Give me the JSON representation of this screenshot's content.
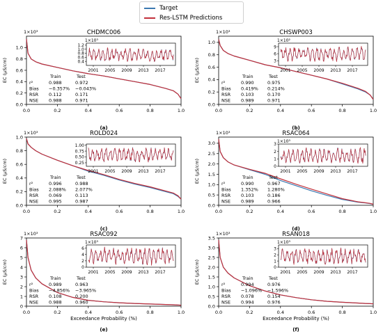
{
  "legend": {
    "items": [
      {
        "label": "Target",
        "color": "#3a78b0"
      },
      {
        "label": "Res-LSTM Predictions",
        "color": "#c2303a"
      }
    ]
  },
  "colors": {
    "target": "#3a78b0",
    "prediction": "#c2303a"
  },
  "shared": {
    "ylabel": "EC (μS/cm)",
    "xlabel": "Exceedance Probability (%)",
    "x_ticks": [
      "0.0",
      "0.2",
      "0.4",
      "0.6",
      "0.8",
      "1.0"
    ],
    "inset_x_ticks": [
      "2001",
      "2005",
      "2009",
      "2013",
      "2017"
    ],
    "stats_header": [
      "",
      "Train",
      "Test"
    ],
    "stat_names": [
      "r²",
      "Bias",
      "RSR",
      "NSE"
    ]
  },
  "chart_data": [
    {
      "type": "line",
      "title": "CHDMC006",
      "letter": "(a)",
      "multiplier": "1×10³",
      "x": [
        0,
        0.01,
        0.03,
        0.06,
        0.1,
        0.2,
        0.3,
        0.4,
        0.5,
        0.6,
        0.7,
        0.8,
        0.9,
        0.95,
        0.98,
        1.0
      ],
      "series": [
        {
          "name": "Target",
          "values": [
            1.15,
            0.9,
            0.8,
            0.75,
            0.71,
            0.65,
            0.59,
            0.54,
            0.5,
            0.45,
            0.4,
            0.35,
            0.28,
            0.24,
            0.18,
            0.1
          ]
        },
        {
          "name": "Res-LSTM Predictions",
          "values": [
            1.15,
            0.9,
            0.8,
            0.75,
            0.71,
            0.65,
            0.59,
            0.54,
            0.5,
            0.45,
            0.4,
            0.35,
            0.28,
            0.24,
            0.18,
            0.1
          ]
        }
      ],
      "ylim": [
        0,
        1.2
      ],
      "yticks": [
        "0.0",
        "0.2",
        "0.4",
        "0.6",
        "0.8",
        "1.0"
      ],
      "inset": {
        "ylim": [
          0.2,
          1.3
        ],
        "yticks": [
          "0.4",
          "0.6",
          "0.8",
          "1.0",
          "1.2"
        ],
        "multiplier": "1×10³",
        "range": [
          0.3,
          1.1
        ]
      },
      "stats": [
        [
          "0.988",
          "0.972"
        ],
        [
          "−0.357%",
          "−0.043%"
        ],
        [
          "0.112",
          "0.171"
        ],
        [
          "0.988",
          "0.971"
        ]
      ]
    },
    {
      "type": "line",
      "title": "CHSWP003",
      "letter": "(b)",
      "multiplier": "1×10³",
      "x": [
        0,
        0.01,
        0.03,
        0.06,
        0.1,
        0.2,
        0.3,
        0.4,
        0.5,
        0.6,
        0.7,
        0.8,
        0.9,
        0.95,
        0.98,
        1.0
      ],
      "series": [
        {
          "name": "Target",
          "values": [
            1.05,
            0.95,
            0.87,
            0.82,
            0.78,
            0.71,
            0.64,
            0.59,
            0.53,
            0.47,
            0.41,
            0.33,
            0.25,
            0.2,
            0.15,
            0.08
          ]
        },
        {
          "name": "Res-LSTM Predictions",
          "values": [
            1.05,
            0.95,
            0.87,
            0.82,
            0.78,
            0.71,
            0.64,
            0.59,
            0.53,
            0.47,
            0.41,
            0.34,
            0.26,
            0.21,
            0.15,
            0.08
          ]
        }
      ],
      "ylim": [
        0,
        1.1
      ],
      "yticks": [
        "0.0",
        "0.2",
        "0.4",
        "0.6",
        "0.8",
        "1.0"
      ],
      "inset": {
        "ylim": [
          1,
          10.5
        ],
        "yticks": [
          "3",
          "6",
          "9"
        ],
        "multiplier": "1×10²",
        "range": [
          2,
          9.5
        ]
      },
      "stats": [
        [
          "0.990",
          "0.975"
        ],
        [
          "0.419%",
          "0.214%"
        ],
        [
          "0.103",
          "0.170"
        ],
        [
          "0.989",
          "0.971"
        ]
      ]
    },
    {
      "type": "line",
      "title": "ROLD024",
      "letter": "(c)",
      "multiplier": "1×10³",
      "x": [
        0,
        0.01,
        0.03,
        0.06,
        0.1,
        0.2,
        0.3,
        0.4,
        0.5,
        0.6,
        0.7,
        0.8,
        0.9,
        0.95,
        0.98,
        1.0
      ],
      "series": [
        {
          "name": "Target",
          "values": [
            0.98,
            0.9,
            0.85,
            0.8,
            0.75,
            0.66,
            0.58,
            0.5,
            0.44,
            0.37,
            0.31,
            0.26,
            0.2,
            0.17,
            0.13,
            0.09
          ]
        },
        {
          "name": "Res-LSTM Predictions",
          "values": [
            0.98,
            0.9,
            0.85,
            0.8,
            0.75,
            0.66,
            0.58,
            0.51,
            0.45,
            0.38,
            0.32,
            0.27,
            0.21,
            0.18,
            0.14,
            0.09
          ]
        }
      ],
      "ylim": [
        0,
        1.0
      ],
      "yticks": [
        "0.0",
        "0.2",
        "0.4",
        "0.6",
        "0.8",
        "1.0"
      ],
      "inset": {
        "ylim": [
          0.1,
          1.05
        ],
        "yticks": [
          "0.25",
          "0.50",
          "0.75",
          "1.00"
        ],
        "multiplier": "",
        "range": [
          0.2,
          0.95
        ]
      },
      "stats": [
        [
          "0.996",
          "0.988"
        ],
        [
          "2.088%",
          "2.077%"
        ],
        [
          "0.069",
          "0.113"
        ],
        [
          "0.995",
          "0.987"
        ]
      ]
    },
    {
      "type": "line",
      "title": "RSAC064",
      "letter": "(d)",
      "multiplier": "1×10³",
      "x": [
        0,
        0.01,
        0.03,
        0.06,
        0.1,
        0.2,
        0.3,
        0.4,
        0.5,
        0.6,
        0.7,
        0.8,
        0.9,
        0.95,
        0.98,
        1.0
      ],
      "series": [
        {
          "name": "Target",
          "values": [
            3.2,
            2.6,
            2.3,
            2.1,
            1.95,
            1.72,
            1.5,
            1.2,
            0.95,
            0.7,
            0.48,
            0.28,
            0.15,
            0.11,
            0.08,
            0.05
          ]
        },
        {
          "name": "Res-LSTM Predictions",
          "values": [
            3.2,
            2.6,
            2.3,
            2.1,
            1.95,
            1.74,
            1.55,
            1.28,
            1.02,
            0.78,
            0.55,
            0.32,
            0.17,
            0.12,
            0.09,
            0.05
          ]
        }
      ],
      "ylim": [
        0,
        3.3
      ],
      "yticks": [
        "0.0",
        "0.5",
        "1.0",
        "1.5",
        "2.0",
        "2.5",
        "3.0"
      ],
      "inset": {
        "ylim": [
          0,
          3
        ],
        "yticks": [
          "0",
          "1",
          "2",
          "3"
        ],
        "multiplier": "1×10³",
        "range": [
          0.1,
          2.6
        ]
      },
      "stats": [
        [
          "0.990",
          "0.967"
        ],
        [
          "1.352%",
          "1.280%"
        ],
        [
          "0.103",
          "0.186"
        ],
        [
          "0.989",
          "0.966"
        ]
      ]
    },
    {
      "type": "line",
      "title": "RSAC092",
      "letter": "(e)",
      "multiplier": "1×10³",
      "x": [
        0,
        0.01,
        0.03,
        0.06,
        0.1,
        0.2,
        0.3,
        0.4,
        0.5,
        0.6,
        0.7,
        0.8,
        0.9,
        0.95,
        0.98,
        1.0
      ],
      "series": [
        {
          "name": "Target",
          "values": [
            6.8,
            5.0,
            3.7,
            2.9,
            2.3,
            1.4,
            0.9,
            0.6,
            0.45,
            0.35,
            0.28,
            0.22,
            0.17,
            0.14,
            0.12,
            0.1
          ]
        },
        {
          "name": "Res-LSTM Predictions",
          "values": [
            6.8,
            5.0,
            3.7,
            2.9,
            2.3,
            1.4,
            0.9,
            0.6,
            0.45,
            0.35,
            0.28,
            0.22,
            0.17,
            0.14,
            0.12,
            0.1
          ]
        }
      ],
      "ylim": [
        0,
        7
      ],
      "yticks": [
        "0",
        "1",
        "2",
        "3",
        "4",
        "5",
        "6",
        "7"
      ],
      "inset": {
        "ylim": [
          0,
          7
        ],
        "yticks": [
          "0",
          "2",
          "4",
          "6"
        ],
        "multiplier": "1×10³",
        "range": [
          0.2,
          6.5
        ]
      },
      "stats": [
        [
          "0.989",
          "0.963"
        ],
        [
          "−4.856%",
          "−3.965%"
        ],
        [
          "0.108",
          "0.200"
        ],
        [
          "0.988",
          "0.960"
        ]
      ]
    },
    {
      "type": "line",
      "title": "RSAN018",
      "letter": "(f)",
      "multiplier": "1×10³",
      "x": [
        0,
        0.01,
        0.03,
        0.06,
        0.1,
        0.2,
        0.3,
        0.4,
        0.5,
        0.6,
        0.7,
        0.8,
        0.9,
        0.95,
        0.98,
        1.0
      ],
      "series": [
        {
          "name": "Target",
          "values": [
            3.4,
            2.5,
            2.0,
            1.7,
            1.45,
            1.05,
            0.78,
            0.58,
            0.44,
            0.33,
            0.25,
            0.2,
            0.16,
            0.14,
            0.13,
            0.12
          ]
        },
        {
          "name": "Res-LSTM Predictions",
          "values": [
            3.4,
            2.5,
            2.0,
            1.7,
            1.45,
            1.05,
            0.78,
            0.58,
            0.44,
            0.33,
            0.25,
            0.2,
            0.16,
            0.14,
            0.13,
            0.12
          ]
        }
      ],
      "ylim": [
        0,
        3.5
      ],
      "yticks": [
        "0.0",
        "0.5",
        "1.0",
        "1.5",
        "2.0",
        "2.5",
        "3.0",
        "3.5"
      ],
      "inset": {
        "ylim": [
          0,
          3.6
        ],
        "yticks": [
          "0",
          "1",
          "2",
          "3"
        ],
        "multiplier": "1×10³",
        "range": [
          0.1,
          3.3
        ]
      },
      "stats": [
        [
          "0.994",
          "0.976"
        ],
        [
          "−1.096%",
          "−1.596%"
        ],
        [
          "0.078",
          "0.154"
        ],
        [
          "0.994",
          "0.976"
        ]
      ]
    }
  ]
}
